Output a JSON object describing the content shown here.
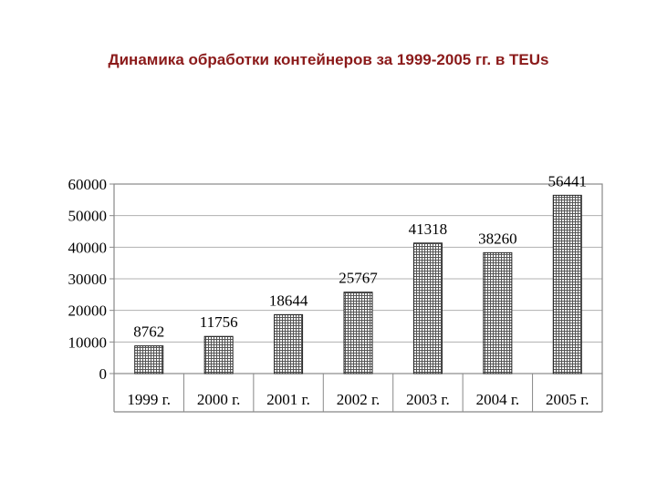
{
  "title": "Динамика обработки контейнеров за 1999-2005 гг. в TEUs",
  "chart_data": {
    "type": "bar",
    "title": "Динамика обработки контейнеров за 1999-2005 гг. в TEUs",
    "categories": [
      "1999 г.",
      "2000 г.",
      "2001 г.",
      "2002 г.",
      "2003 г.",
      "2004 г.",
      "2005 г."
    ],
    "values": [
      8762,
      11756,
      18644,
      25767,
      41318,
      38260,
      56441
    ],
    "data_labels": [
      "8762",
      "11756",
      "18644",
      "25767",
      "41318",
      "38260",
      "56441"
    ],
    "yticks": [
      "0",
      "10000",
      "20000",
      "30000",
      "40000",
      "50000",
      "60000"
    ],
    "ylim": [
      0,
      60000
    ],
    "xlabel": "",
    "ylabel": "",
    "grid": true,
    "legend": "none",
    "bar_fill": "hatched-gray"
  }
}
